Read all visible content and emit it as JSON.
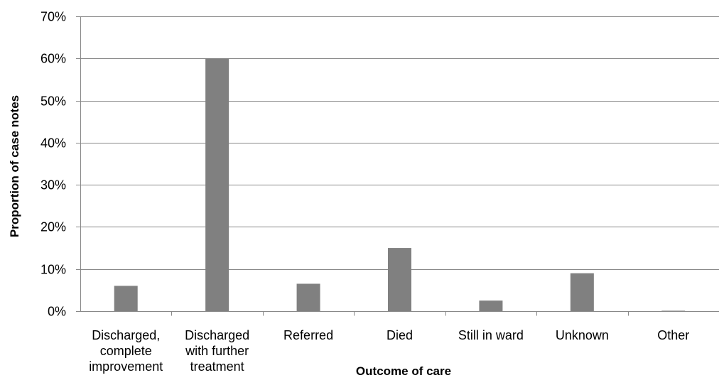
{
  "chart_data": {
    "type": "bar",
    "categories": [
      [
        "Discharged,",
        "complete",
        "improvement"
      ],
      [
        "Discharged",
        "with further",
        "treatment"
      ],
      [
        "Referred"
      ],
      [
        "Died"
      ],
      [
        "Still in ward"
      ],
      [
        "Unknown"
      ],
      [
        "Other"
      ]
    ],
    "values": [
      6,
      60,
      6.5,
      15,
      2.5,
      9,
      0.1
    ],
    "xlabel": "Outcome of care",
    "ylabel": "Proportion of case notes",
    "ylim": [
      0,
      70
    ],
    "yticks": [
      0,
      10,
      20,
      30,
      40,
      50,
      60,
      70
    ],
    "ytick_suffix": "%",
    "grid": true,
    "bar_color": "#808080",
    "grid_color": "#888888"
  }
}
